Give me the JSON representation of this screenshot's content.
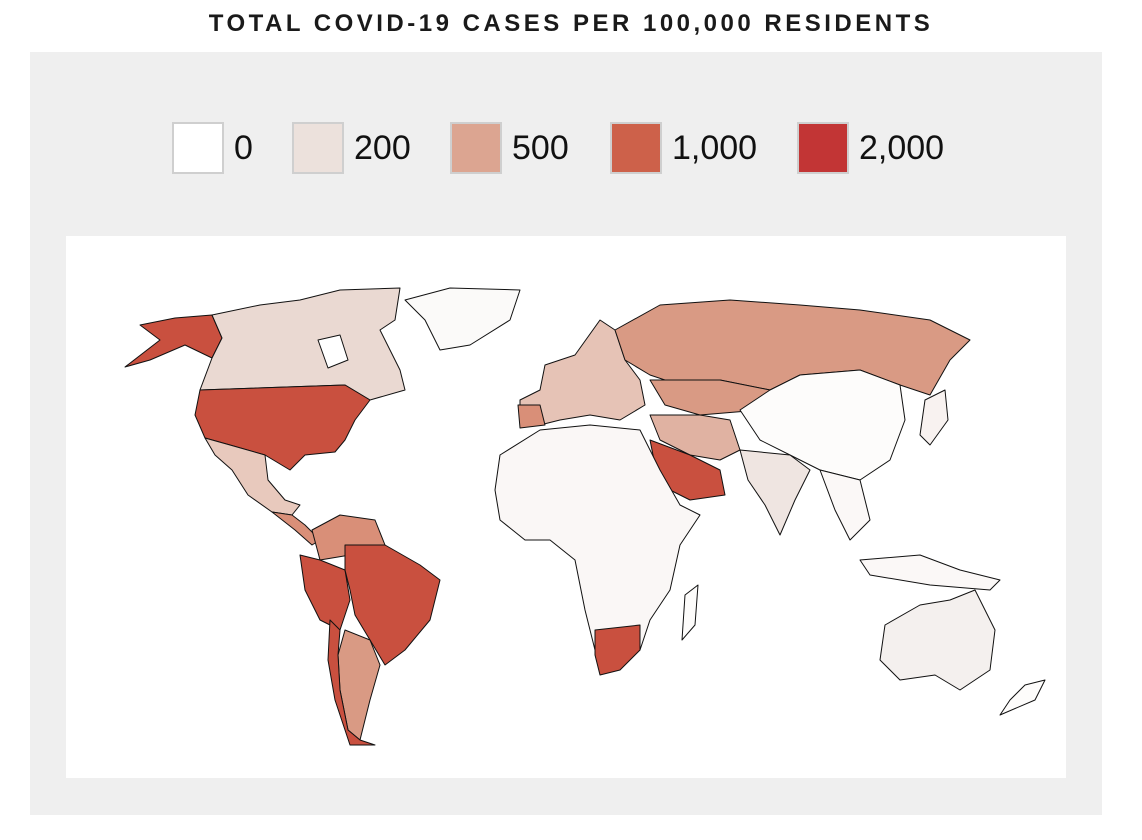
{
  "title": "TOTAL COVID-19 CASES PER 100,000 RESIDENTS",
  "legend": [
    {
      "label": "0",
      "color": "#ffffff"
    },
    {
      "label": "200",
      "color": "#ece1dc"
    },
    {
      "label": "500",
      "color": "#dca591"
    },
    {
      "label": "1,000",
      "color": "#cd614a"
    },
    {
      "label": "2,000",
      "color": "#c23535"
    }
  ]
}
